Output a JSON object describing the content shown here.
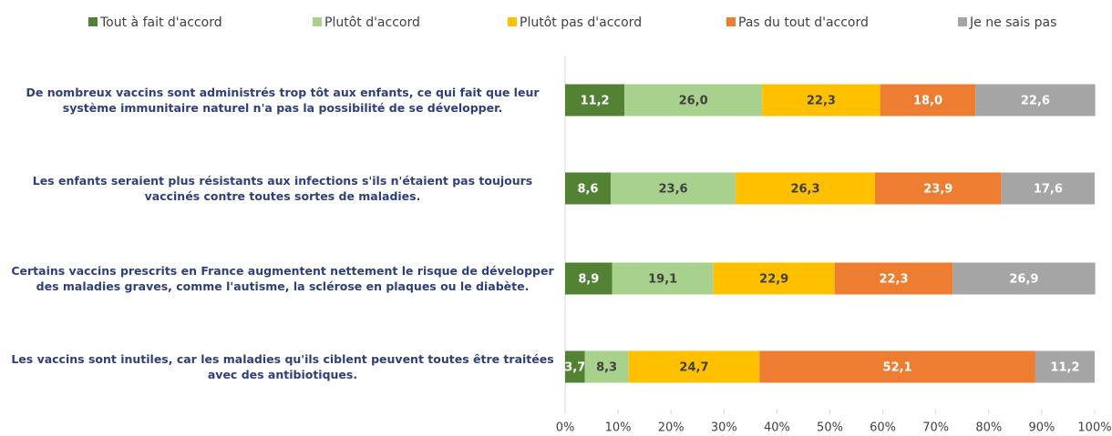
{
  "chart_data": {
    "type": "stacked_bar_horizontal",
    "categories": [
      "De nombreux vaccins sont administrés trop tôt aux enfants, ce qui fait que leur système immunitaire naturel n'a pas la possibilité de se développer.",
      "Les enfants seraient plus résistants aux infections s'ils n'étaient pas toujours vaccinés contre toutes sortes de maladies.",
      "Certains vaccins prescrits en France augmentent nettement le risque de développer des maladies graves, comme l'autisme, la sclérose en plaques ou le diabète.",
      "Les vaccins sont inutiles, car les maladies qu'ils ciblent peuvent toutes être traitées avec des antibiotiques."
    ],
    "series": [
      {
        "name": "Tout à fait d'accord",
        "color": "#548235",
        "values": [
          11.2,
          8.6,
          8.9,
          3.7
        ],
        "value_labels": [
          "11,2",
          "8,6",
          "8,9",
          "3,7"
        ]
      },
      {
        "name": "Plutôt d'accord",
        "color": "#a9d18e",
        "values": [
          26.0,
          23.6,
          19.1,
          8.3
        ],
        "value_labels": [
          "26,0",
          "23,6",
          "19,1",
          "8,3"
        ]
      },
      {
        "name": "Plutôt pas d'accord",
        "color": "#ffc000",
        "values": [
          22.3,
          26.3,
          22.9,
          24.7
        ],
        "value_labels": [
          "22,3",
          "26,3",
          "22,9",
          "24,7"
        ]
      },
      {
        "name": "Pas du tout d'accord",
        "color": "#ed7d31",
        "values": [
          18.0,
          23.9,
          22.3,
          52.1
        ],
        "value_labels": [
          "18,0",
          "23,9",
          "22,3",
          "52,1"
        ]
      },
      {
        "name": "Je ne sais pas",
        "color": "#a5a5a5",
        "values": [
          22.6,
          17.6,
          26.9,
          11.2
        ],
        "value_labels": [
          "22,6",
          "17,6",
          "26,9",
          "11,2"
        ]
      }
    ],
    "xlim": [
      0,
      100
    ],
    "xticks": [
      {
        "value": 0,
        "label": "0%"
      },
      {
        "value": 10,
        "label": "10%"
      },
      {
        "value": 20,
        "label": "20%"
      },
      {
        "value": 30,
        "label": "30%"
      },
      {
        "value": 40,
        "label": "40%"
      },
      {
        "value": 50,
        "label": "50%"
      },
      {
        "value": 60,
        "label": "60%"
      },
      {
        "value": 70,
        "label": "70%"
      },
      {
        "value": 80,
        "label": "80%"
      },
      {
        "value": 90,
        "label": "90%"
      },
      {
        "value": 100,
        "label": "100%"
      }
    ],
    "legend": "top"
  }
}
